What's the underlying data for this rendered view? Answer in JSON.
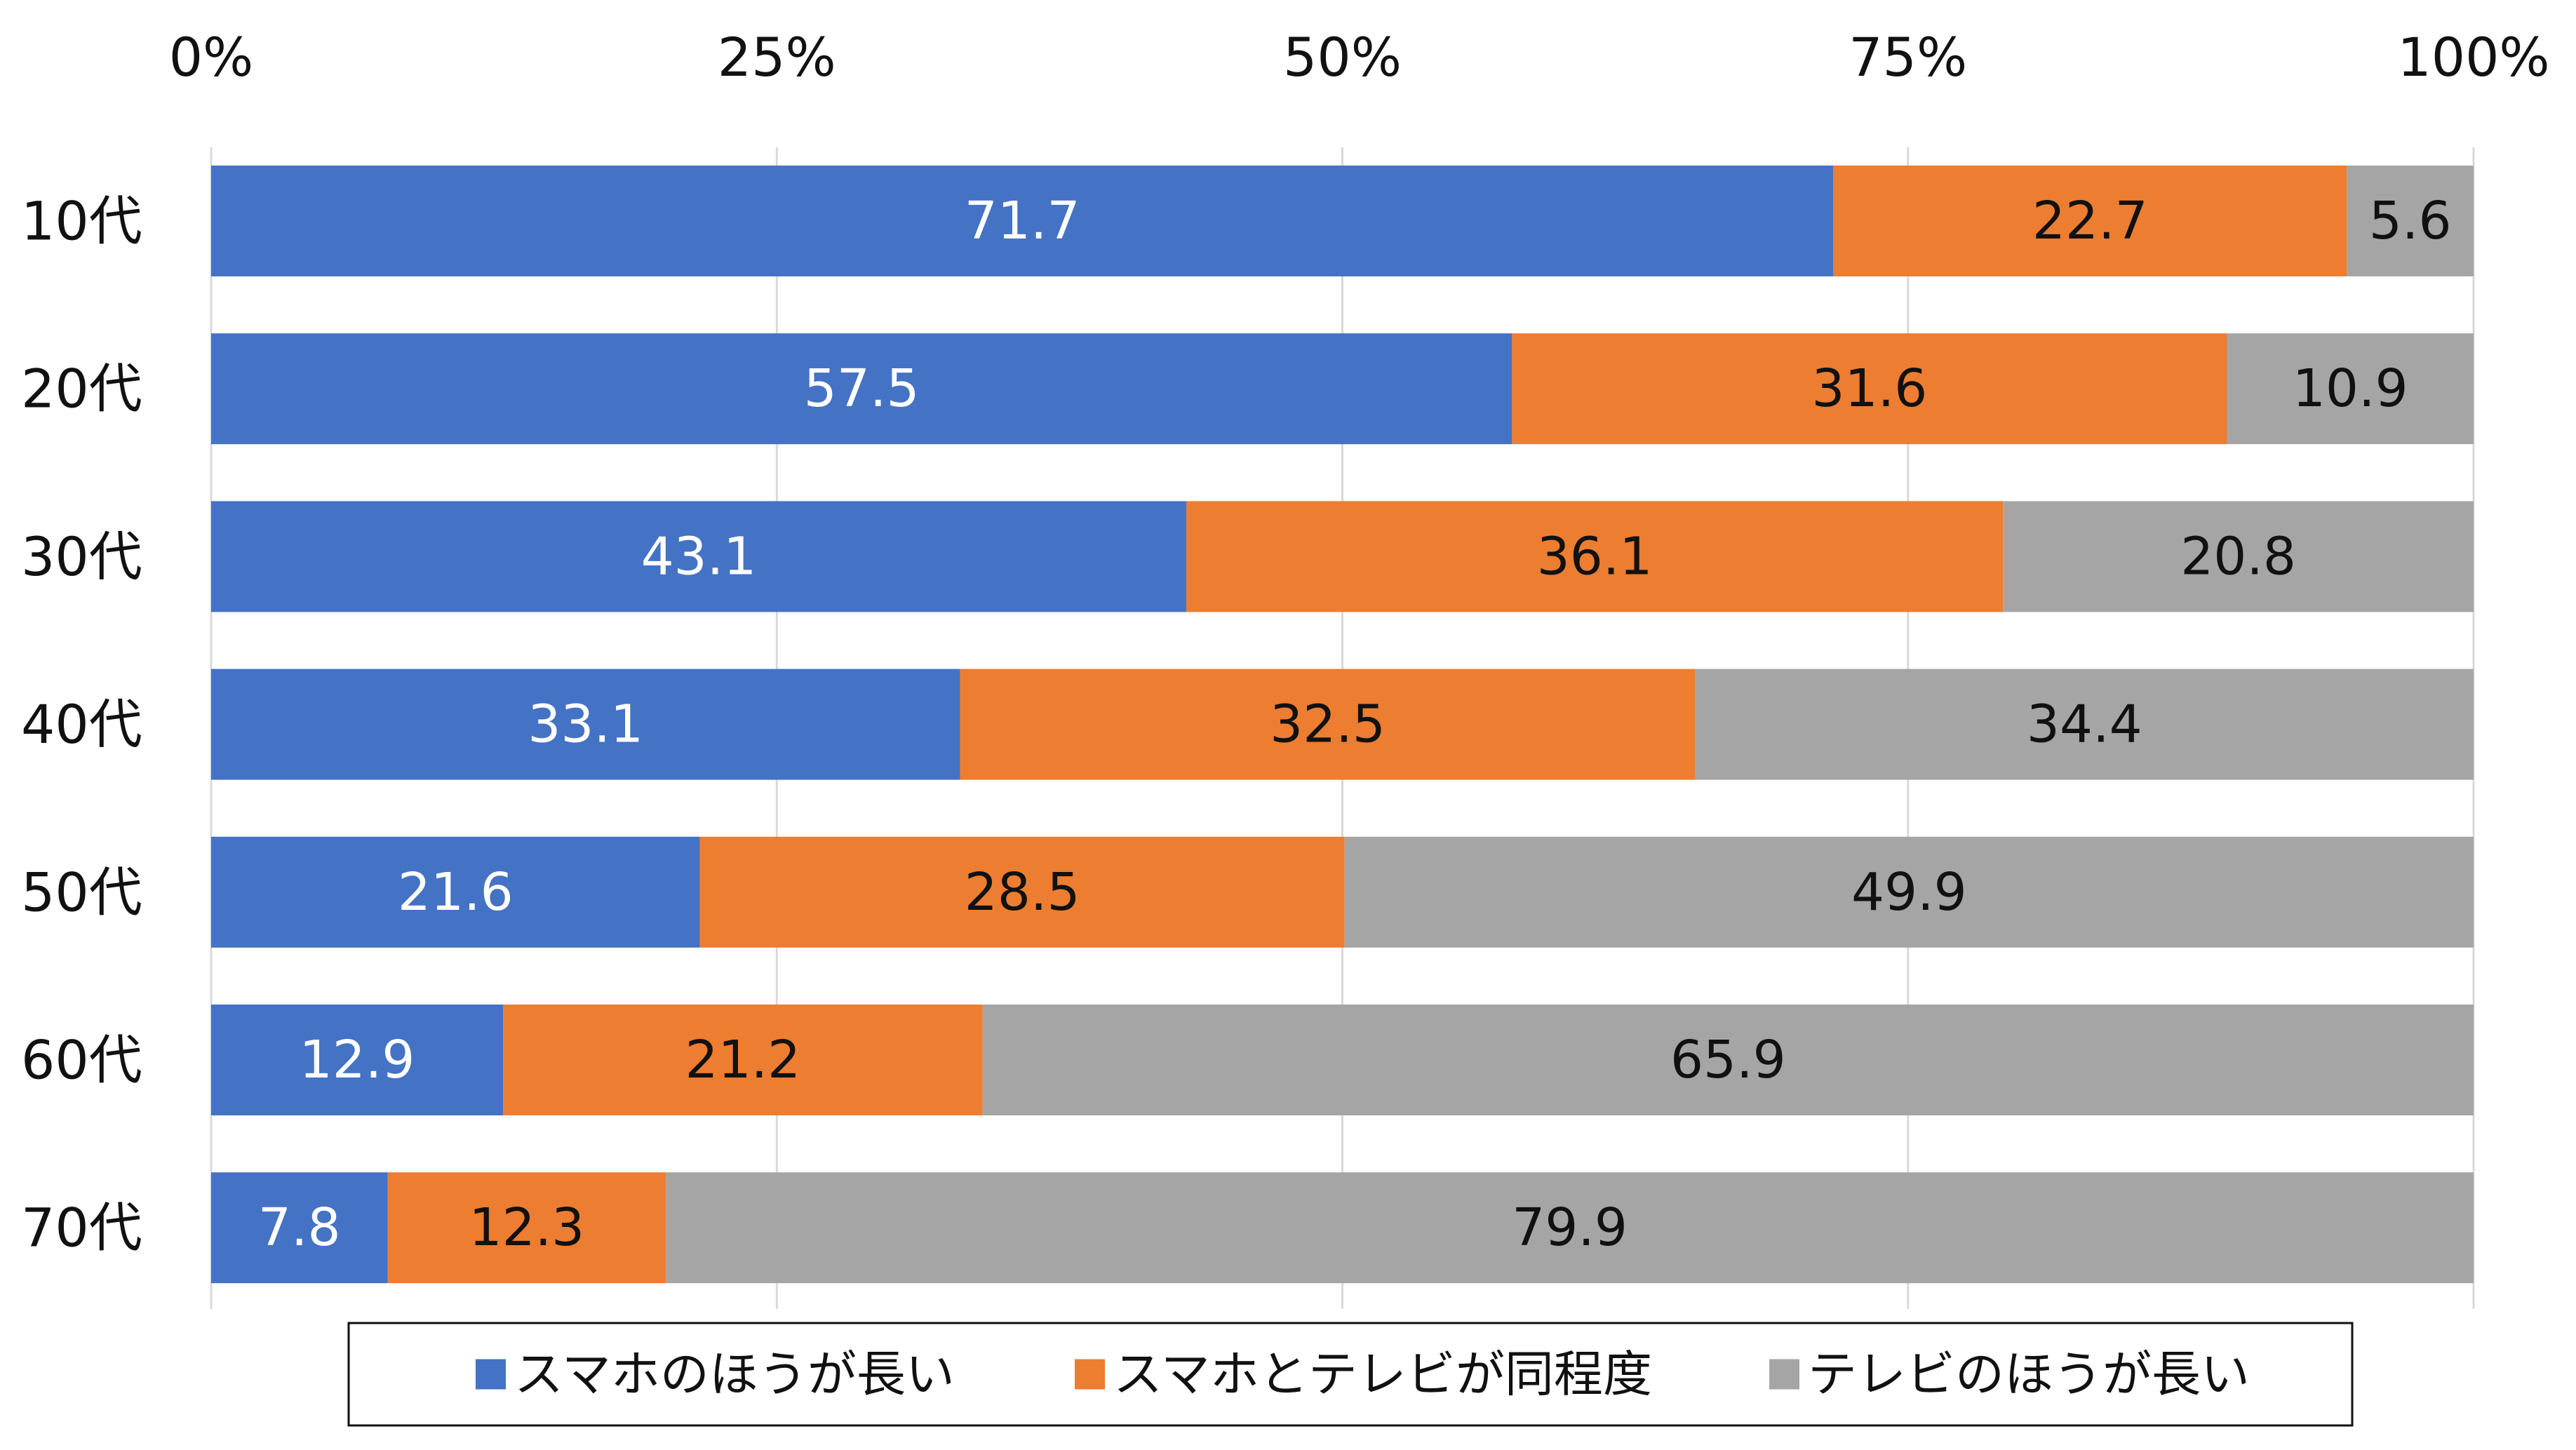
{
  "chart_data": {
    "type": "bar",
    "orientation": "horizontal",
    "stacked": true,
    "percent_stacked": true,
    "categories": [
      "10代",
      "20代",
      "30代",
      "40代",
      "50代",
      "60代",
      "70代"
    ],
    "series": [
      {
        "name": "スマホのほうが長い",
        "color": "#4472C4",
        "label_color": "#ffffff",
        "values": [
          71.7,
          57.5,
          43.1,
          33.1,
          21.6,
          12.9,
          7.8
        ]
      },
      {
        "name": "スマホとテレビが同程度",
        "color": "#ED7D31",
        "label_color": "#111111",
        "values": [
          22.7,
          31.6,
          36.1,
          32.5,
          28.5,
          21.2,
          12.3
        ]
      },
      {
        "name": "テレビのほうが長い",
        "color": "#A5A5A5",
        "label_color": "#111111",
        "values": [
          5.6,
          10.9,
          20.8,
          34.4,
          49.9,
          65.9,
          79.9
        ]
      }
    ],
    "xaxis": {
      "position": "top",
      "range": [
        0,
        100
      ],
      "ticks": [
        0,
        25,
        50,
        75,
        100
      ],
      "tick_labels": [
        "0%",
        "25%",
        "50%",
        "75%",
        "100%"
      ]
    },
    "grid": true,
    "data_labels": true,
    "legend": {
      "position": "bottom",
      "border": true
    },
    "title": "",
    "xlabel": "",
    "ylabel": ""
  }
}
